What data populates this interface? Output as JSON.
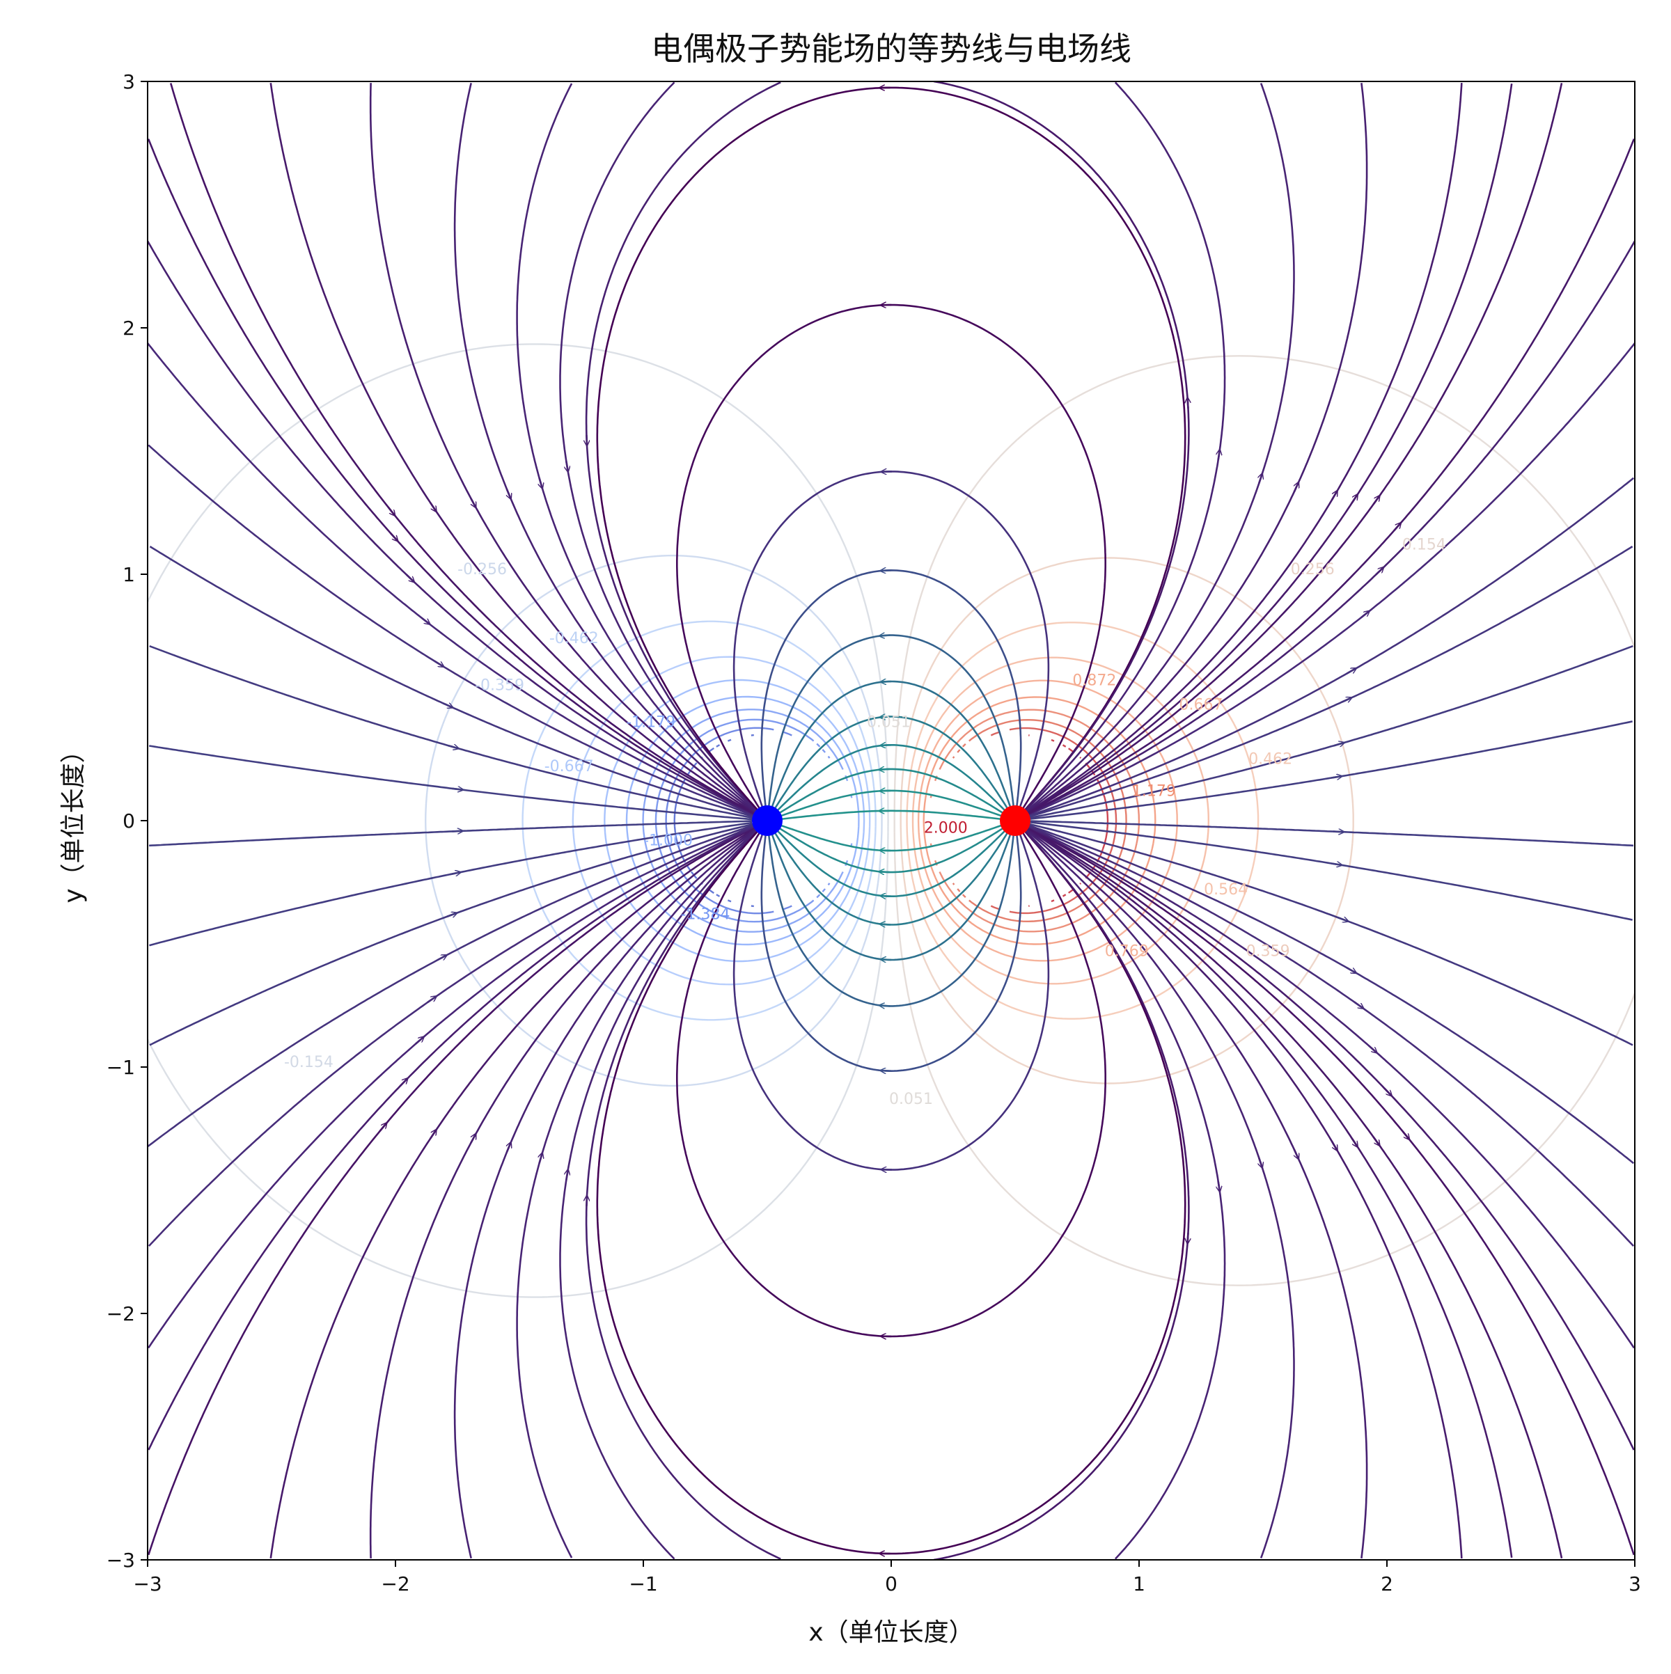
{
  "chart_data": {
    "type": "contour+streamplot",
    "title": "电偶极子势能场的等势线与电场线",
    "xlabel": "x（单位长度）",
    "ylabel": "y（单位长度）",
    "xlim": [
      -3,
      3
    ],
    "ylim": [
      -3,
      3
    ],
    "xticks": [
      -3,
      -2,
      -1,
      0,
      1,
      2,
      3
    ],
    "yticks": [
      -3,
      -2,
      -1,
      0,
      1,
      2,
      3
    ],
    "xtick_labels": [
      "−3",
      "−2",
      "−1",
      "0",
      "1",
      "2",
      "3"
    ],
    "ytick_labels": [
      "−3",
      "−2",
      "−1",
      "0",
      "1",
      "2",
      "3"
    ],
    "grid": false,
    "legend": "none",
    "charges": [
      {
        "sign": "negative",
        "x": -0.5,
        "y": 0,
        "color": "#0000ff"
      },
      {
        "sign": "positive",
        "x": 0.5,
        "y": 0,
        "color": "#ff0000"
      }
    ],
    "potential": {
      "formula": "1/r_plus - 1/r_minus",
      "masked_radius": 0.35,
      "colormap": "coolwarm",
      "level_step": 0.205,
      "level_range": [
        -2.15,
        2.15
      ]
    },
    "contour_labels": [
      {
        "x": -1.65,
        "y": 1.0,
        "text": "-0.256"
      },
      {
        "x": -1.28,
        "y": 0.72,
        "text": "-0.462"
      },
      {
        "x": -1.58,
        "y": 0.53,
        "text": "-0.359"
      },
      {
        "x": -1.3,
        "y": 0.2,
        "text": "-0.667"
      },
      {
        "x": -0.97,
        "y": 0.38,
        "text": "-1.179"
      },
      {
        "x": -0.75,
        "y": -0.4,
        "text": "-1.384"
      },
      {
        "x": -0.9,
        "y": -0.1,
        "text": "-1.000"
      },
      {
        "x": -2.35,
        "y": -1.0,
        "text": "-0.154"
      },
      {
        "x": 1.7,
        "y": 1.0,
        "text": "0.256"
      },
      {
        "x": 2.15,
        "y": 1.1,
        "text": "0.154"
      },
      {
        "x": 0.82,
        "y": 0.55,
        "text": "0.872"
      },
      {
        "x": 1.25,
        "y": 0.45,
        "text": "0.667"
      },
      {
        "x": 1.53,
        "y": 0.23,
        "text": "0.462"
      },
      {
        "x": 1.06,
        "y": 0.1,
        "text": "1.179"
      },
      {
        "x": 1.35,
        "y": -0.3,
        "text": "0.564"
      },
      {
        "x": 1.52,
        "y": -0.55,
        "text": "0.359"
      },
      {
        "x": 0.95,
        "y": -0.55,
        "text": "0.769"
      },
      {
        "x": 0.22,
        "y": -0.05,
        "text": "2.000"
      },
      {
        "x": 0.08,
        "y": -1.15,
        "text": "0.051"
      },
      {
        "x": -0.01,
        "y": 0.38,
        "text": "0.051"
      }
    ],
    "streamlines": {
      "colormap": "viridis",
      "color_by": "log field magnitude",
      "direction": "from positive charge to negative charge"
    }
  }
}
